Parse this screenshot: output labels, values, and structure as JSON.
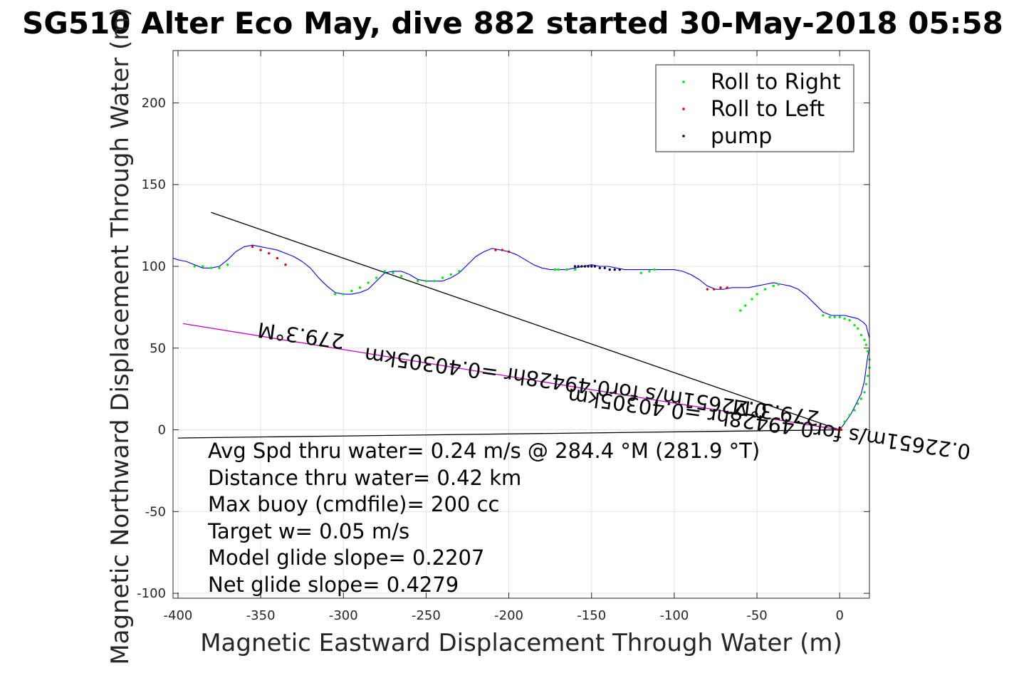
{
  "chart_data": {
    "type": "line",
    "title": "SG510 Alter Eco May, dive 882 started 30-May-2018 05:58",
    "xlabel": "Magnetic Eastward Displacement Through Water (m)",
    "ylabel": "Magnetic Northward Displacement Through Water (m)",
    "xlim": [
      -403,
      18
    ],
    "ylim": [
      -103,
      232
    ],
    "xticks": [
      -400,
      -350,
      -300,
      -250,
      -200,
      -150,
      -100,
      -50,
      0
    ],
    "yticks": [
      -100,
      -50,
      0,
      50,
      100,
      150,
      200
    ],
    "xtick_labels": [
      "-400",
      "-350",
      "-300",
      "-250",
      "-200",
      "-150",
      "-100",
      "-50",
      "0"
    ],
    "ytick_labels": [
      "-100",
      "-50",
      "0",
      "50",
      "100",
      "150",
      "200"
    ],
    "grid": true,
    "legend_position": "top-right",
    "legend": [
      {
        "label": "Roll to Right",
        "color": "#00ee00"
      },
      {
        "label": "Roll to Left",
        "color": "#ee0000"
      },
      {
        "label": "pump",
        "color": "#000033"
      }
    ],
    "track": {
      "color": "#0000ff",
      "x": [
        0,
        3,
        7,
        10,
        13,
        15,
        16,
        17,
        18,
        18,
        17,
        16,
        14,
        11,
        7,
        3,
        0,
        -5,
        -10,
        -15,
        -20,
        -25,
        -30,
        -35,
        -40,
        -45,
        -50,
        -55,
        -60,
        -65,
        -70,
        -75,
        -80,
        -85,
        -90,
        -95,
        -100,
        -105,
        -110,
        -115,
        -120,
        -125,
        -130,
        -135,
        -140,
        -145,
        -150,
        -155,
        -160,
        -165,
        -170,
        -175,
        -180,
        -185,
        -190,
        -195,
        -200,
        -205,
        -210,
        -215,
        -220,
        -225,
        -230,
        -235,
        -240,
        -245,
        -250,
        -255,
        -260,
        -265,
        -270,
        -275,
        -280,
        -285,
        -290,
        -295,
        -300,
        -305,
        -310,
        -315,
        -320,
        -325,
        -330,
        -335,
        -340,
        -345,
        -350,
        -355,
        -360,
        -365,
        -370,
        -375,
        -380,
        -385,
        -390,
        -395,
        -400,
        -403
      ],
      "y": [
        0,
        4,
        10,
        16,
        22,
        30,
        38,
        45,
        50,
        56,
        60,
        64,
        66,
        68,
        69,
        70,
        70,
        70,
        72,
        77,
        82,
        86,
        88,
        89,
        90,
        89,
        88,
        87,
        87,
        87,
        86,
        86,
        88,
        92,
        95,
        97,
        98,
        98,
        98,
        98,
        98,
        98,
        98,
        99,
        100,
        100,
        101,
        100,
        99,
        98,
        98,
        98,
        99,
        101,
        104,
        107,
        109,
        110,
        111,
        109,
        106,
        101,
        96,
        93,
        91,
        91,
        91,
        92,
        95,
        97,
        97,
        96,
        91,
        86,
        84,
        83,
        83,
        84,
        88,
        93,
        99,
        103,
        106,
        108,
        110,
        111,
        112,
        113,
        112,
        109,
        104,
        100,
        99,
        99,
        101,
        103,
        104,
        105
      ]
    },
    "roll_right_x": [
      0,
      3,
      6,
      9,
      11,
      13,
      15,
      16,
      17,
      18,
      18,
      17,
      16,
      15,
      13,
      11,
      9,
      6,
      3,
      0,
      -3,
      -6,
      -10,
      -37,
      -40,
      -45,
      -50,
      -53,
      -57,
      -60,
      -112,
      -115,
      -120,
      -172,
      -170,
      -165,
      -160,
      -230,
      -235,
      -240,
      -245,
      -250,
      -255,
      -265,
      -270,
      -275,
      -280,
      -285,
      -290,
      -295,
      -300,
      -305,
      -370,
      -375,
      -380,
      -385,
      -390
    ],
    "roll_right_y": [
      1,
      5,
      9,
      12,
      16,
      19,
      23,
      28,
      33,
      38,
      43,
      48,
      52,
      55,
      58,
      62,
      64,
      67,
      68,
      69,
      69,
      69,
      70,
      89,
      88,
      86,
      83,
      80,
      76,
      73,
      98,
      97,
      96,
      98,
      98,
      98,
      98,
      97,
      95,
      93,
      91,
      91,
      91,
      94,
      96,
      97,
      93,
      90,
      87,
      85,
      83,
      83,
      101,
      99,
      99,
      100,
      100
    ],
    "roll_left_x": [
      1,
      0,
      -1,
      -68,
      -72,
      -76,
      -80,
      -200,
      -204,
      -208,
      -335,
      -340,
      -345,
      -350,
      -355
    ],
    "roll_left_y": [
      0,
      1,
      0,
      87,
      87,
      86,
      86,
      109,
      110,
      110,
      101,
      105,
      108,
      110,
      112
    ],
    "pump_x": [
      -133,
      -136,
      -139,
      -142,
      -145,
      -148,
      -150,
      -152,
      -154,
      -156,
      -158,
      -160
    ],
    "pump_y": [
      98,
      98,
      98,
      99,
      99,
      100,
      100,
      100,
      100,
      100,
      100,
      100
    ],
    "lines": [
      {
        "name": "heading_line",
        "color": "#000000",
        "x": [
          0,
          -380
        ],
        "y": [
          0,
          133
        ]
      },
      {
        "name": "baseline",
        "color": "#000000",
        "x": [
          0,
          -400
        ],
        "y": [
          0,
          -5
        ]
      },
      {
        "name": "current_line",
        "color": "#cc00cc",
        "x": [
          0,
          -397
        ],
        "y": [
          0,
          65
        ]
      }
    ],
    "rotated_labels": [
      {
        "text": "279.3°M",
        "x": -325,
        "y": 62,
        "angle": 188
      },
      {
        "text": "0.22651m/s for0.49428hr =0.40305km",
        "x": -165,
        "y": 33,
        "angle": 188
      },
      {
        "text": "279.3°M",
        "x": -38,
        "y": 15,
        "angle": 188
      },
      {
        "text": "0.22651m/s for0.49428hr =0.40305km",
        "x": -42,
        "y": 8,
        "angle": 188
      }
    ],
    "stats": [
      "Avg Spd thru water=  0.24 m/s @ 284.4 °M (281.9 °T)",
      "Distance thru water=  0.42 km",
      "Max buoy (cmdfile)= 200 cc",
      "Target w= 0.05 m/s",
      "Model glide slope= 0.2207",
      "Net glide slope= 0.4279"
    ]
  }
}
